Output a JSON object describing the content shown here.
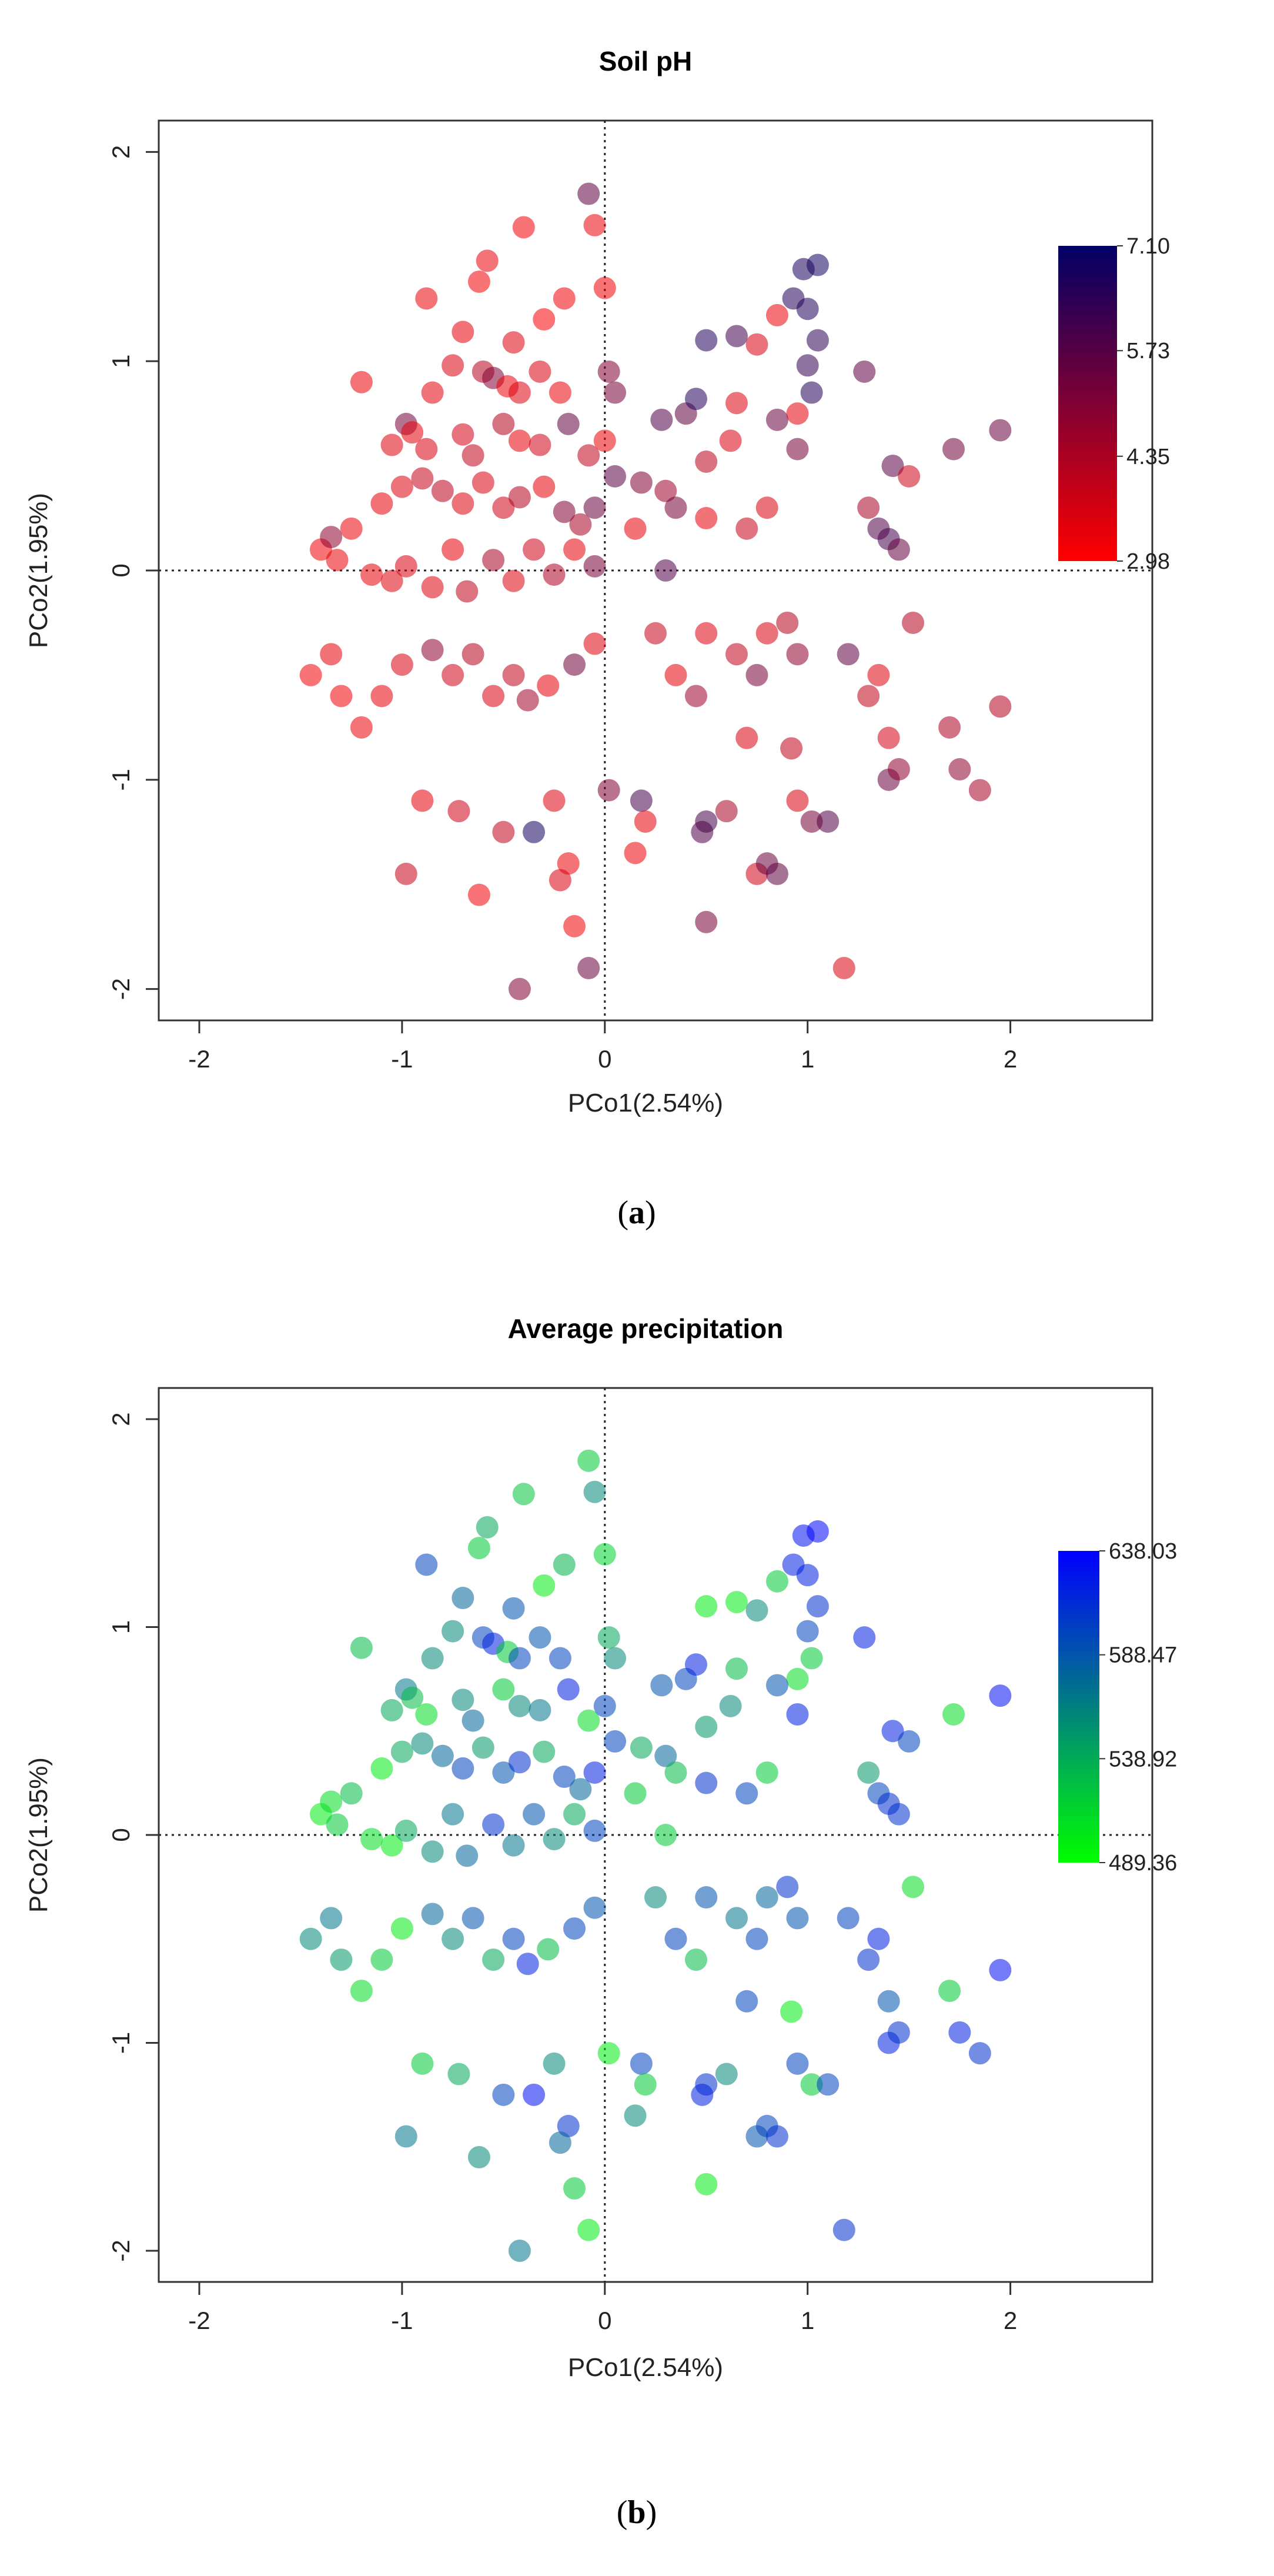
{
  "chart_data": [
    {
      "type": "scatter",
      "panel": "a",
      "caption": {
        "open": "(",
        "letter": "a",
        "close": ")"
      },
      "title": "Soil pH",
      "xlabel": "PCo1(2.54%)",
      "ylabel": "PCo2(1.95%)",
      "xlim": [
        -2.2,
        2.7
      ],
      "ylim": [
        -2.15,
        2.15
      ],
      "xticks": [
        -2,
        -1,
        0,
        1,
        2
      ],
      "yticks": [
        -2,
        -1,
        0,
        1,
        2
      ],
      "xtick_labels": [
        "-2",
        "-1",
        "0",
        "1",
        "2"
      ],
      "ytick_labels": [
        "-2",
        "-1",
        "0",
        "1",
        "2"
      ],
      "reference_lines": {
        "x": 0,
        "y": 0
      },
      "colorbar": {
        "min": 2.98,
        "max": 7.1,
        "low_color": "#ff0000",
        "high_color": "#000066",
        "labels": [
          "7.10",
          "5.73",
          "4.35",
          "2.98"
        ],
        "label_values": [
          7.1,
          5.73,
          4.35,
          2.98
        ]
      }
    },
    {
      "type": "scatter",
      "panel": "b",
      "caption": {
        "open": "(",
        "letter": "b",
        "close": ")"
      },
      "title": "Average precipitation",
      "xlabel": "PCo1(2.54%)",
      "ylabel": "PCo2(1.95%)",
      "xlim": [
        -2.2,
        2.7
      ],
      "ylim": [
        -2.15,
        2.15
      ],
      "xticks": [
        -2,
        -1,
        0,
        1,
        2
      ],
      "yticks": [
        -2,
        -1,
        0,
        1,
        2
      ],
      "xtick_labels": [
        "-2",
        "-1",
        "0",
        "1",
        "2"
      ],
      "ytick_labels": [
        "-2",
        "-1",
        "0",
        "1",
        "2"
      ],
      "reference_lines": {
        "x": 0,
        "y": 0
      },
      "colorbar": {
        "min": 489.36,
        "max": 638.03,
        "low_color": "#00ff00",
        "high_color": "#0000ff",
        "labels": [
          "638.03",
          "588.47",
          "538.92",
          "489.36"
        ],
        "label_values": [
          638.03,
          588.47,
          538.92,
          489.36
        ]
      }
    }
  ],
  "points": [
    {
      "x": -0.08,
      "y": 1.8,
      "ph": 5.6,
      "precip": 520
    },
    {
      "x": -0.05,
      "y": 1.65,
      "ph": 3.3,
      "precip": 560
    },
    {
      "x": -0.4,
      "y": 1.64,
      "ph": 3.2,
      "precip": 525
    },
    {
      "x": -0.58,
      "y": 1.48,
      "ph": 3.3,
      "precip": 540
    },
    {
      "x": -0.62,
      "y": 1.38,
      "ph": 3.2,
      "precip": 520
    },
    {
      "x": -0.2,
      "y": 1.3,
      "ph": 3.2,
      "precip": 535
    },
    {
      "x": -0.3,
      "y": 1.2,
      "ph": 3.1,
      "precip": 500
    },
    {
      "x": 0.0,
      "y": 1.35,
      "ph": 3.2,
      "precip": 515
    },
    {
      "x": -0.88,
      "y": 1.3,
      "ph": 3.3,
      "precip": 600
    },
    {
      "x": -0.7,
      "y": 1.14,
      "ph": 3.4,
      "precip": 580
    },
    {
      "x": -0.45,
      "y": 1.09,
      "ph": 3.5,
      "precip": 590
    },
    {
      "x": -0.75,
      "y": 0.98,
      "ph": 3.6,
      "precip": 560
    },
    {
      "x": -1.2,
      "y": 0.9,
      "ph": 3.3,
      "precip": 530
    },
    {
      "x": -0.85,
      "y": 0.85,
      "ph": 3.4,
      "precip": 560
    },
    {
      "x": -0.6,
      "y": 0.95,
      "ph": 4.2,
      "precip": 600
    },
    {
      "x": -0.55,
      "y": 0.92,
      "ph": 5.0,
      "precip": 620
    },
    {
      "x": -0.48,
      "y": 0.88,
      "ph": 3.3,
      "precip": 520
    },
    {
      "x": -0.42,
      "y": 0.85,
      "ph": 3.5,
      "precip": 600
    },
    {
      "x": -0.32,
      "y": 0.95,
      "ph": 3.6,
      "precip": 590
    },
    {
      "x": -0.22,
      "y": 0.85,
      "ph": 3.3,
      "precip": 600
    },
    {
      "x": -0.98,
      "y": 0.7,
      "ph": 5.2,
      "precip": 570
    },
    {
      "x": -1.05,
      "y": 0.6,
      "ph": 3.5,
      "precip": 540
    },
    {
      "x": -0.95,
      "y": 0.66,
      "ph": 3.4,
      "precip": 530
    },
    {
      "x": -0.88,
      "y": 0.58,
      "ph": 3.6,
      "precip": 510
    },
    {
      "x": -0.7,
      "y": 0.65,
      "ph": 3.7,
      "precip": 560
    },
    {
      "x": -0.65,
      "y": 0.55,
      "ph": 4.0,
      "precip": 580
    },
    {
      "x": -0.5,
      "y": 0.7,
      "ph": 4.2,
      "precip": 520
    },
    {
      "x": -0.42,
      "y": 0.62,
      "ph": 3.4,
      "precip": 560
    },
    {
      "x": -0.32,
      "y": 0.6,
      "ph": 3.8,
      "precip": 570
    },
    {
      "x": -0.18,
      "y": 0.7,
      "ph": 5.5,
      "precip": 620
    },
    {
      "x": -0.08,
      "y": 0.55,
      "ph": 4.0,
      "precip": 510
    },
    {
      "x": 0.0,
      "y": 0.62,
      "ph": 3.3,
      "precip": 600
    },
    {
      "x": 0.02,
      "y": 0.95,
      "ph": 5.0,
      "precip": 540
    },
    {
      "x": 0.05,
      "y": 0.85,
      "ph": 5.2,
      "precip": 560
    },
    {
      "x": -1.1,
      "y": 0.32,
      "ph": 3.4,
      "precip": 500
    },
    {
      "x": -1.0,
      "y": 0.4,
      "ph": 3.5,
      "precip": 540
    },
    {
      "x": -0.9,
      "y": 0.44,
      "ph": 3.9,
      "precip": 560
    },
    {
      "x": -0.8,
      "y": 0.38,
      "ph": 4.1,
      "precip": 580
    },
    {
      "x": -0.7,
      "y": 0.32,
      "ph": 3.5,
      "precip": 600
    },
    {
      "x": -0.6,
      "y": 0.42,
      "ph": 3.6,
      "precip": 550
    },
    {
      "x": -0.5,
      "y": 0.3,
      "ph": 3.8,
      "precip": 590
    },
    {
      "x": -0.42,
      "y": 0.35,
      "ph": 4.2,
      "precip": 610
    },
    {
      "x": -0.3,
      "y": 0.4,
      "ph": 3.4,
      "precip": 540
    },
    {
      "x": -0.2,
      "y": 0.28,
      "ph": 5.0,
      "precip": 600
    },
    {
      "x": -0.12,
      "y": 0.22,
      "ph": 4.4,
      "precip": 580
    },
    {
      "x": -0.05,
      "y": 0.3,
      "ph": 5.4,
      "precip": 620
    },
    {
      "x": -1.4,
      "y": 0.1,
      "ph": 3.2,
      "precip": 500
    },
    {
      "x": -1.35,
      "y": 0.16,
      "ph": 4.8,
      "precip": 510
    },
    {
      "x": -1.32,
      "y": 0.05,
      "ph": 3.3,
      "precip": 520
    },
    {
      "x": -1.25,
      "y": 0.2,
      "ph": 3.3,
      "precip": 530
    },
    {
      "x": -1.15,
      "y": -0.02,
      "ph": 3.4,
      "precip": 510
    },
    {
      "x": -1.05,
      "y": -0.05,
      "ph": 3.5,
      "precip": 500
    },
    {
      "x": -0.98,
      "y": 0.02,
      "ph": 3.6,
      "precip": 540
    },
    {
      "x": -0.85,
      "y": -0.08,
      "ph": 3.5,
      "precip": 560
    },
    {
      "x": -0.75,
      "y": 0.1,
      "ph": 3.4,
      "precip": 570
    },
    {
      "x": -0.68,
      "y": -0.1,
      "ph": 4.0,
      "precip": 580
    },
    {
      "x": -0.55,
      "y": 0.05,
      "ph": 4.4,
      "precip": 610
    },
    {
      "x": -0.45,
      "y": -0.05,
      "ph": 3.5,
      "precip": 570
    },
    {
      "x": -0.35,
      "y": 0.1,
      "ph": 3.8,
      "precip": 590
    },
    {
      "x": -0.25,
      "y": -0.02,
      "ph": 4.3,
      "precip": 560
    },
    {
      "x": -0.15,
      "y": 0.1,
      "ph": 3.4,
      "precip": 540
    },
    {
      "x": -0.05,
      "y": 0.02,
      "ph": 5.2,
      "precip": 600
    },
    {
      "x": -1.45,
      "y": -0.5,
      "ph": 3.2,
      "precip": 560
    },
    {
      "x": -1.35,
      "y": -0.4,
      "ph": 3.4,
      "precip": 570
    },
    {
      "x": -1.3,
      "y": -0.6,
      "ph": 3.2,
      "precip": 550
    },
    {
      "x": -1.2,
      "y": -0.75,
      "ph": 3.3,
      "precip": 510
    },
    {
      "x": -1.1,
      "y": -0.6,
      "ph": 3.4,
      "precip": 520
    },
    {
      "x": -1.0,
      "y": -0.45,
      "ph": 3.6,
      "precip": 500
    },
    {
      "x": -0.85,
      "y": -0.38,
      "ph": 4.8,
      "precip": 580
    },
    {
      "x": -0.75,
      "y": -0.5,
      "ph": 3.8,
      "precip": 560
    },
    {
      "x": -0.65,
      "y": -0.4,
      "ph": 4.2,
      "precip": 590
    },
    {
      "x": -0.55,
      "y": -0.6,
      "ph": 3.6,
      "precip": 540
    },
    {
      "x": -0.45,
      "y": -0.5,
      "ph": 4.0,
      "precip": 600
    },
    {
      "x": -0.38,
      "y": -0.62,
      "ph": 4.5,
      "precip": 620
    },
    {
      "x": -0.28,
      "y": -0.55,
      "ph": 3.4,
      "precip": 530
    },
    {
      "x": -0.15,
      "y": -0.45,
      "ph": 5.3,
      "precip": 600
    },
    {
      "x": -0.05,
      "y": -0.35,
      "ph": 3.5,
      "precip": 590
    },
    {
      "x": -0.98,
      "y": -1.45,
      "ph": 3.9,
      "precip": 570
    },
    {
      "x": -0.9,
      "y": -1.1,
      "ph": 3.4,
      "precip": 520
    },
    {
      "x": -0.72,
      "y": -1.15,
      "ph": 3.8,
      "precip": 540
    },
    {
      "x": -0.62,
      "y": -1.55,
      "ph": 3.2,
      "precip": 560
    },
    {
      "x": -0.5,
      "y": -1.25,
      "ph": 4.0,
      "precip": 600
    },
    {
      "x": -0.35,
      "y": -1.25,
      "ph": 6.8,
      "precip": 630
    },
    {
      "x": -0.25,
      "y": -1.1,
      "ph": 3.5,
      "precip": 560
    },
    {
      "x": -0.18,
      "y": -1.4,
      "ph": 3.3,
      "precip": 610
    },
    {
      "x": -0.15,
      "y": -1.7,
      "ph": 3.2,
      "precip": 520
    },
    {
      "x": -0.42,
      "y": -2.0,
      "ph": 5.0,
      "precip": 570
    },
    {
      "x": -0.08,
      "y": -1.9,
      "ph": 5.4,
      "precip": 500
    },
    {
      "x": -0.22,
      "y": -1.48,
      "ph": 3.6,
      "precip": 580
    },
    {
      "x": 0.02,
      "y": -1.05,
      "ph": 5.0,
      "precip": 500
    },
    {
      "x": 0.15,
      "y": -1.35,
      "ph": 3.3,
      "precip": 560
    },
    {
      "x": 0.18,
      "y": -1.1,
      "ph": 6.0,
      "precip": 600
    },
    {
      "x": 0.2,
      "y": -1.2,
      "ph": 3.4,
      "precip": 520
    },
    {
      "x": 0.05,
      "y": 0.45,
      "ph": 5.7,
      "precip": 600
    },
    {
      "x": 0.18,
      "y": 0.42,
      "ph": 5.0,
      "precip": 540
    },
    {
      "x": 0.15,
      "y": 0.2,
      "ph": 3.4,
      "precip": 520
    },
    {
      "x": 0.3,
      "y": 0.38,
      "ph": 4.6,
      "precip": 580
    },
    {
      "x": 0.28,
      "y": 0.72,
      "ph": 5.8,
      "precip": 590
    },
    {
      "x": 0.4,
      "y": 0.75,
      "ph": 5.6,
      "precip": 600
    },
    {
      "x": 0.45,
      "y": 0.82,
      "ph": 6.5,
      "precip": 620
    },
    {
      "x": 0.5,
      "y": 1.1,
      "ph": 6.6,
      "precip": 500
    },
    {
      "x": 0.65,
      "y": 1.12,
      "ph": 6.1,
      "precip": 500
    },
    {
      "x": 0.75,
      "y": 1.08,
      "ph": 3.6,
      "precip": 560
    },
    {
      "x": 0.85,
      "y": 1.22,
      "ph": 3.3,
      "precip": 520
    },
    {
      "x": 0.93,
      "y": 1.3,
      "ph": 6.5,
      "precip": 620
    },
    {
      "x": 0.98,
      "y": 1.44,
      "ph": 6.7,
      "precip": 630
    },
    {
      "x": 1.05,
      "y": 1.46,
      "ph": 6.8,
      "precip": 635
    },
    {
      "x": 1.0,
      "y": 1.25,
      "ph": 6.6,
      "precip": 620
    },
    {
      "x": 1.05,
      "y": 1.1,
      "ph": 6.4,
      "precip": 610
    },
    {
      "x": 1.0,
      "y": 0.98,
      "ph": 6.3,
      "precip": 600
    },
    {
      "x": 1.02,
      "y": 0.85,
      "ph": 6.5,
      "precip": 520
    },
    {
      "x": 1.28,
      "y": 0.95,
      "ph": 5.6,
      "precip": 620
    },
    {
      "x": 0.95,
      "y": 0.75,
      "ph": 3.4,
      "precip": 510
    },
    {
      "x": 0.65,
      "y": 0.8,
      "ph": 3.5,
      "precip": 530
    },
    {
      "x": 0.85,
      "y": 0.72,
      "ph": 5.4,
      "precip": 590
    },
    {
      "x": 0.62,
      "y": 0.62,
      "ph": 3.6,
      "precip": 560
    },
    {
      "x": 0.5,
      "y": 0.52,
      "ph": 4.1,
      "precip": 550
    },
    {
      "x": 0.35,
      "y": 0.3,
      "ph": 5.2,
      "precip": 530
    },
    {
      "x": 0.5,
      "y": 0.25,
      "ph": 3.4,
      "precip": 610
    },
    {
      "x": 0.7,
      "y": 0.2,
      "ph": 3.9,
      "precip": 600
    },
    {
      "x": 0.8,
      "y": 0.3,
      "ph": 3.6,
      "precip": 520
    },
    {
      "x": 0.95,
      "y": 0.58,
      "ph": 5.2,
      "precip": 620
    },
    {
      "x": 1.3,
      "y": 0.3,
      "ph": 4.4,
      "precip": 550
    },
    {
      "x": 1.35,
      "y": 0.2,
      "ph": 5.8,
      "precip": 600
    },
    {
      "x": 1.4,
      "y": 0.15,
      "ph": 6.0,
      "precip": 610
    },
    {
      "x": 1.42,
      "y": 0.5,
      "ph": 5.7,
      "precip": 620
    },
    {
      "x": 1.5,
      "y": 0.45,
      "ph": 3.8,
      "precip": 600
    },
    {
      "x": 1.45,
      "y": 0.1,
      "ph": 5.5,
      "precip": 610
    },
    {
      "x": 1.72,
      "y": 0.58,
      "ph": 5.3,
      "precip": 510
    },
    {
      "x": 1.95,
      "y": 0.67,
      "ph": 5.4,
      "precip": 630
    },
    {
      "x": 0.3,
      "y": 0.0,
      "ph": 5.8,
      "precip": 520
    },
    {
      "x": 0.25,
      "y": -0.3,
      "ph": 3.9,
      "precip": 560
    },
    {
      "x": 0.35,
      "y": -0.5,
      "ph": 3.4,
      "precip": 600
    },
    {
      "x": 0.5,
      "y": -0.3,
      "ph": 3.5,
      "precip": 590
    },
    {
      "x": 0.65,
      "y": -0.4,
      "ph": 4.0,
      "precip": 570
    },
    {
      "x": 0.8,
      "y": -0.3,
      "ph": 3.6,
      "precip": 580
    },
    {
      "x": 0.9,
      "y": -0.25,
      "ph": 4.2,
      "precip": 610
    },
    {
      "x": 0.75,
      "y": -0.5,
      "ph": 5.2,
      "precip": 600
    },
    {
      "x": 0.95,
      "y": -0.4,
      "ph": 4.8,
      "precip": 590
    },
    {
      "x": 0.7,
      "y": -0.8,
      "ph": 3.6,
      "precip": 600
    },
    {
      "x": 0.92,
      "y": -0.85,
      "ph": 4.0,
      "precip": 500
    },
    {
      "x": 1.2,
      "y": -0.4,
      "ph": 5.6,
      "precip": 600
    },
    {
      "x": 1.3,
      "y": -0.6,
      "ph": 4.0,
      "precip": 610
    },
    {
      "x": 1.35,
      "y": -0.5,
      "ph": 3.5,
      "precip": 620
    },
    {
      "x": 1.52,
      "y": -0.25,
      "ph": 4.2,
      "precip": 510
    },
    {
      "x": 1.4,
      "y": -0.8,
      "ph": 3.7,
      "precip": 590
    },
    {
      "x": 1.4,
      "y": -1.0,
      "ph": 5.4,
      "precip": 620
    },
    {
      "x": 1.45,
      "y": -0.95,
      "ph": 4.8,
      "precip": 610
    },
    {
      "x": 1.7,
      "y": -0.75,
      "ph": 4.3,
      "precip": 520
    },
    {
      "x": 1.75,
      "y": -0.95,
      "ph": 4.8,
      "precip": 620
    },
    {
      "x": 1.85,
      "y": -1.05,
      "ph": 4.4,
      "precip": 610
    },
    {
      "x": 1.95,
      "y": -0.65,
      "ph": 4.2,
      "precip": 630
    },
    {
      "x": 0.5,
      "y": -1.2,
      "ph": 6.0,
      "precip": 610
    },
    {
      "x": 0.48,
      "y": -1.25,
      "ph": 5.8,
      "precip": 620
    },
    {
      "x": 0.6,
      "y": -1.15,
      "ph": 4.4,
      "precip": 560
    },
    {
      "x": 0.75,
      "y": -1.45,
      "ph": 3.8,
      "precip": 590
    },
    {
      "x": 0.8,
      "y": -1.4,
      "ph": 5.4,
      "precip": 600
    },
    {
      "x": 0.85,
      "y": -1.45,
      "ph": 5.6,
      "precip": 610
    },
    {
      "x": 0.95,
      "y": -1.1,
      "ph": 3.6,
      "precip": 600
    },
    {
      "x": 1.02,
      "y": -1.2,
      "ph": 5.2,
      "precip": 520
    },
    {
      "x": 1.1,
      "y": -1.2,
      "ph": 5.8,
      "precip": 600
    },
    {
      "x": 0.5,
      "y": -1.68,
      "ph": 5.2,
      "precip": 500
    },
    {
      "x": 1.18,
      "y": -1.9,
      "ph": 3.6,
      "precip": 610
    },
    {
      "x": 0.45,
      "y": -0.6,
      "ph": 4.6,
      "precip": 530
    }
  ]
}
